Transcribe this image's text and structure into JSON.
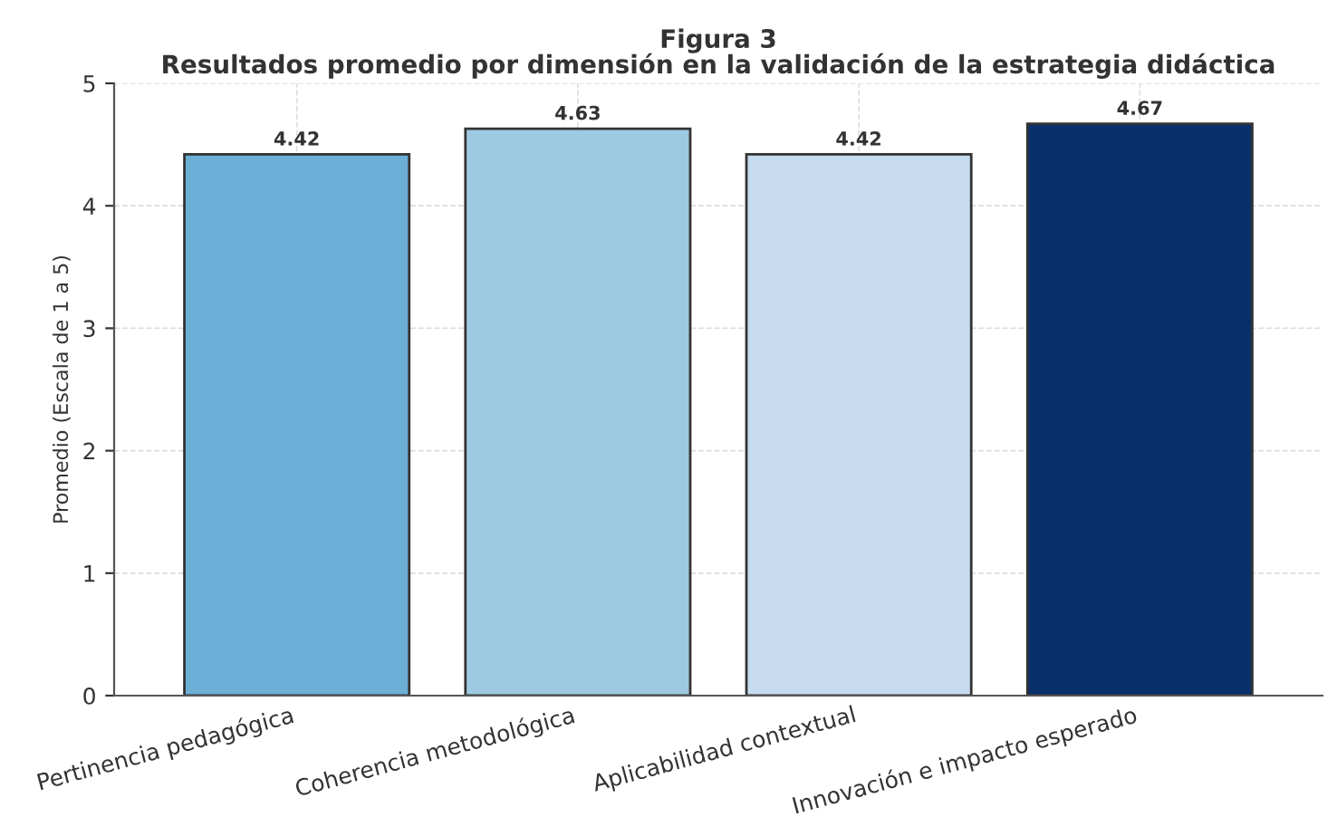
{
  "chart_data": {
    "type": "bar",
    "title": "Figura 3",
    "subtitle": "Resultados promedio por dimensión en la validación de la estrategia didáctica",
    "ylabel": "Promedio (Escala de 1 a 5)",
    "categories": [
      "Pertinencia pedagógica",
      "Coherencia metodológica",
      "Aplicabilidad contextual",
      "Innovación e impacto esperado"
    ],
    "values": [
      4.42,
      4.63,
      4.42,
      4.67
    ],
    "colors": [
      "#6baed6",
      "#9ecae1",
      "#c6dbef",
      "#08306b"
    ],
    "ylim": [
      0,
      5
    ],
    "yticks": [
      0,
      1,
      2,
      3,
      4,
      5
    ],
    "grid": true,
    "data_labels": true
  }
}
